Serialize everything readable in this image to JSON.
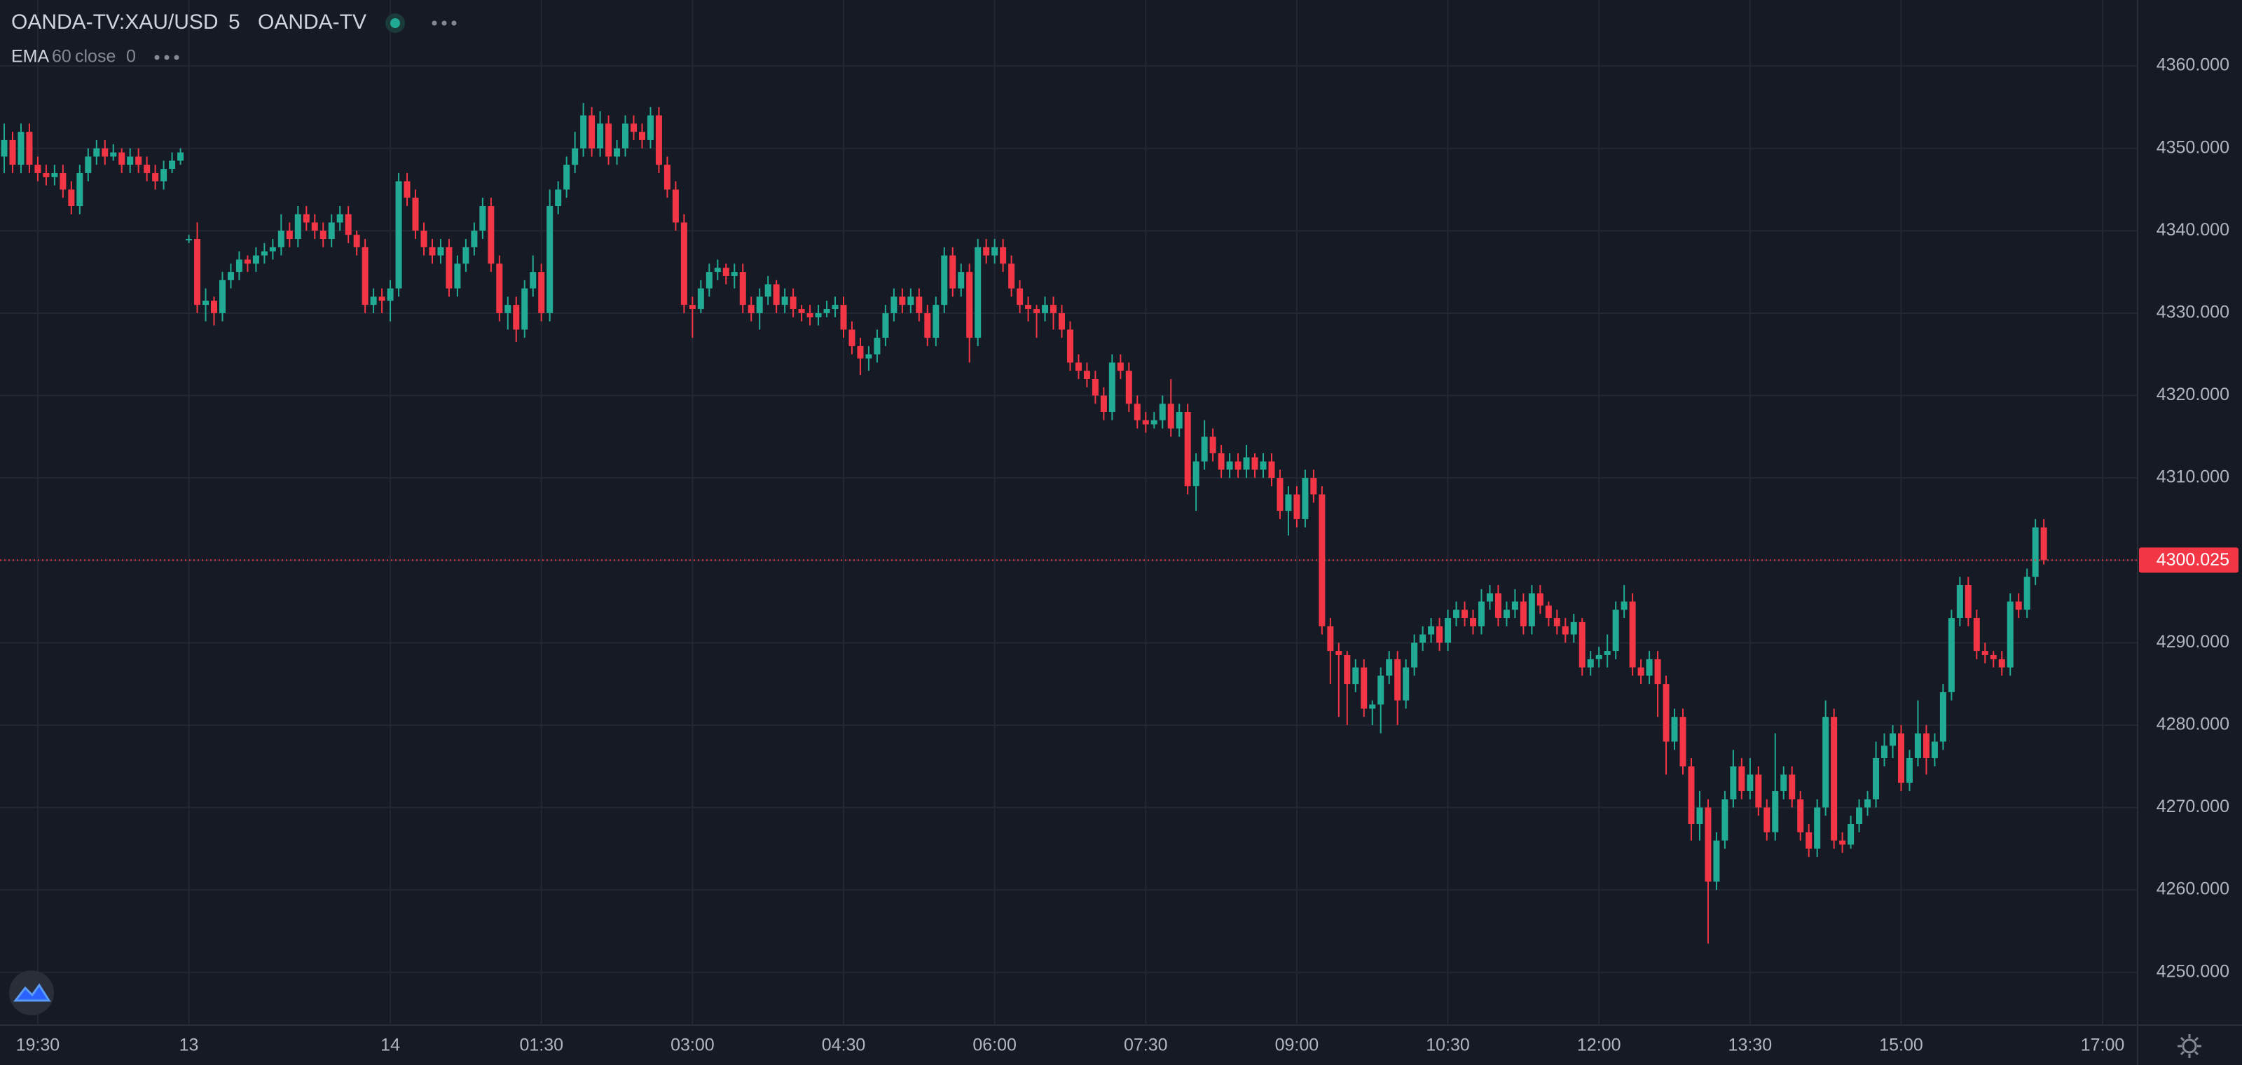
{
  "header": {
    "symbol": "OANDA-TV:XAU/USD",
    "interval": "5",
    "source": "OANDA-TV"
  },
  "indicator": {
    "name": "EMA",
    "length": "60",
    "field": "close",
    "offset": "0"
  },
  "chart_data": {
    "type": "candlestick",
    "up_color": "#22ab94",
    "down_color": "#f23645",
    "grid": true,
    "ylim": [
      4243.6,
      4368.0
    ],
    "yticks": [
      {
        "value": 4250,
        "label": "4250.000"
      },
      {
        "value": 4260,
        "label": "4260.000"
      },
      {
        "value": 4270,
        "label": "4270.000"
      },
      {
        "value": 4280,
        "label": "4280.000"
      },
      {
        "value": 4290,
        "label": "4290.000"
      },
      {
        "value": 4300,
        "label": "4300.000"
      },
      {
        "value": 4310,
        "label": "4310.000"
      },
      {
        "value": 4320,
        "label": "4320.000"
      },
      {
        "value": 4330,
        "label": "4330.000"
      },
      {
        "value": 4340,
        "label": "4340.000"
      },
      {
        "value": 4350,
        "label": "4350.000"
      },
      {
        "value": 4360,
        "label": "4360.000"
      }
    ],
    "categories": [
      null,
      null,
      null,
      null,
      "19:30",
      null,
      null,
      null,
      null,
      null,
      null,
      null,
      null,
      null,
      null,
      null,
      null,
      null,
      null,
      null,
      null,
      null,
      "13",
      null,
      null,
      null,
      null,
      null,
      null,
      null,
      null,
      null,
      null,
      null,
      null,
      null,
      null,
      null,
      null,
      null,
      null,
      null,
      null,
      null,
      null,
      null,
      "14",
      null,
      null,
      null,
      null,
      null,
      null,
      null,
      null,
      null,
      null,
      null,
      null,
      null,
      null,
      null,
      null,
      null,
      "01:30",
      null,
      null,
      null,
      null,
      null,
      null,
      null,
      null,
      null,
      null,
      null,
      null,
      null,
      null,
      null,
      null,
      null,
      "03:00",
      null,
      null,
      null,
      null,
      null,
      null,
      null,
      null,
      null,
      null,
      null,
      null,
      null,
      null,
      null,
      null,
      null,
      "04:30",
      null,
      null,
      null,
      null,
      null,
      null,
      null,
      null,
      null,
      null,
      null,
      null,
      null,
      null,
      null,
      null,
      null,
      "06:00",
      null,
      null,
      null,
      null,
      null,
      null,
      null,
      null,
      null,
      null,
      null,
      null,
      null,
      null,
      null,
      null,
      null,
      "07:30",
      null,
      null,
      null,
      null,
      null,
      null,
      null,
      null,
      null,
      null,
      null,
      null,
      null,
      null,
      null,
      null,
      null,
      "09:00",
      null,
      null,
      null,
      null,
      null,
      null,
      null,
      null,
      null,
      null,
      null,
      null,
      null,
      null,
      null,
      null,
      null,
      "10:30",
      null,
      null,
      null,
      null,
      null,
      null,
      null,
      null,
      null,
      null,
      null,
      null,
      null,
      null,
      null,
      null,
      null,
      "12:00",
      null,
      null,
      null,
      null,
      null,
      null,
      null,
      null,
      null,
      null,
      null,
      null,
      null,
      null,
      null,
      null,
      null,
      "13:30",
      null,
      null,
      null,
      null,
      null,
      null,
      null,
      null,
      null,
      null,
      null,
      null,
      null,
      null,
      null,
      null,
      null,
      "15:00",
      null,
      null,
      null,
      null,
      null,
      null,
      null,
      null,
      null,
      null,
      null,
      null,
      null,
      null,
      null,
      null,
      null,
      null,
      null,
      null,
      null,
      null,
      null,
      "17:00",
      null,
      null,
      null,
      null
    ],
    "open": [
      4349,
      4351,
      4348,
      4352,
      4348,
      4347,
      4346.5,
      4347,
      4345,
      4343,
      4347,
      4349,
      4350,
      4349,
      4349.5,
      4348,
      4349,
      4348,
      4347,
      4346,
      4347.5,
      4348.5,
      4339,
      4339,
      4331,
      4331.5,
      4330,
      4334,
      4335,
      4336.5,
      4336,
      4337,
      4337.5,
      4338,
      4340,
      4339,
      4342,
      4341,
      4340,
      4339,
      4341,
      4342,
      4339.5,
      4338,
      4331,
      4332,
      4331.5,
      4333,
      4346,
      4344,
      4340,
      4338,
      4337,
      4338,
      4333,
      4336,
      4338,
      4340,
      4343,
      4336,
      4330,
      4331,
      4328,
      4333,
      4335,
      4330,
      4343,
      4345,
      4348,
      4350,
      4354,
      4350,
      4353,
      4349,
      4350,
      4353,
      4352,
      4351,
      4354,
      4348,
      4345,
      4341,
      4331,
      4330.5,
      4333,
      4335,
      4335.5,
      4334.5,
      4335,
      4331,
      4330,
      4332,
      4333.5,
      4331,
      4332,
      4330.5,
      4330,
      4329.5,
      4330,
      4330.5,
      4331,
      4328,
      4326,
      4324.5,
      4325,
      4327,
      4330,
      4332,
      4331,
      4332,
      4330,
      4327,
      4331,
      4337,
      4333,
      4335,
      4327,
      4338,
      4337,
      4338,
      4336,
      4333,
      4331,
      4330.5,
      4330,
      4331,
      4330,
      4328,
      4324,
      4323,
      4322,
      4320,
      4318,
      4324,
      4323,
      4319,
      4317,
      4316.5,
      4317,
      4319,
      4316,
      4318,
      4309,
      4312,
      4315,
      4313,
      4311,
      4312,
      4311,
      4312.5,
      4311,
      4312,
      4310,
      4306,
      4308,
      4305,
      4310,
      4308,
      4292,
      4289,
      4288.5,
      4285,
      4287,
      4282,
      4282.5,
      4286,
      4288,
      4283,
      4287,
      4290,
      4291,
      4292,
      4290,
      4293,
      4294,
      4293,
      4292,
      4295,
      4296,
      4293,
      4294,
      4295,
      4292,
      4296,
      4294.5,
      4293,
      4292,
      4291,
      4292.5,
      4287,
      4288,
      4288.5,
      4289,
      4294,
      4295,
      4287,
      4286,
      4288,
      4285,
      4278,
      4281,
      4275,
      4268,
      4270,
      4261,
      4266,
      4271,
      4275,
      4272,
      4274,
      4270,
      4267,
      4272,
      4274,
      4271,
      4267,
      4265,
      4270,
      4281,
      4266,
      4265.5,
      4268,
      4270,
      4271,
      4276,
      4277.5,
      4279,
      4273,
      4276,
      4279,
      4276,
      4278,
      4284,
      4293,
      4297,
      4293,
      4289,
      4288.5,
      4288,
      4287,
      4295,
      4294,
      4298,
      4304,
      null,
      null,
      null,
      null,
      null,
      null,
      null,
      null,
      null,
      null,
      null
    ],
    "high": [
      4353,
      4352,
      4353,
      4353,
      4349,
      4348,
      4348,
      4348,
      4346,
      4348,
      4350,
      4351,
      4351,
      4350.5,
      4350,
      4350,
      4350,
      4349,
      4348,
      4348.5,
      4349.5,
      4350,
      4339.5,
      4341,
      4333,
      4332,
      4335,
      4336,
      4337.5,
      4337,
      4338,
      4338.5,
      4339,
      4342,
      4341,
      4343,
      4343,
      4342,
      4341,
      4342,
      4343,
      4343,
      4340,
      4339,
      4333,
      4333,
      4334,
      4347,
      4347,
      4345,
      4341,
      4339,
      4339,
      4339,
      4337,
      4339,
      4341,
      4344,
      4344,
      4337,
      4332,
      4332,
      4334,
      4337,
      4336,
      4345,
      4346,
      4349,
      4352,
      4355.5,
      4355,
      4354.5,
      4354,
      4351,
      4354,
      4354,
      4353,
      4355,
      4355,
      4349,
      4346,
      4342,
      4332,
      4334,
      4336,
      4336.5,
      4336,
      4336,
      4336,
      4332,
      4333,
      4334.5,
      4334,
      4333,
      4333,
      4331,
      4331,
      4331,
      4331.5,
      4332,
      4332,
      4329,
      4327,
      4326,
      4328,
      4331,
      4333,
      4333,
      4333,
      4333,
      4331,
      4332,
      4338,
      4338,
      4336,
      4336,
      4339,
      4339,
      4339,
      4339,
      4337,
      4334,
      4332,
      4331,
      4332,
      4332,
      4331,
      4329,
      4325,
      4324,
      4323,
      4321,
      4325,
      4325,
      4324,
      4320,
      4318,
      4318,
      4320,
      4322,
      4319,
      4319,
      4313,
      4317,
      4316,
      4314,
      4313,
      4313,
      4314,
      4313,
      4313,
      4313,
      4311,
      4309,
      4309,
      4311,
      4311,
      4309,
      4293,
      4290,
      4289,
      4288,
      4288,
      4283,
      4287,
      4289,
      4289,
      4288,
      4291,
      4292,
      4293,
      4293,
      4294,
      4295,
      4295,
      4294,
      4296.5,
      4297,
      4297,
      4295,
      4296.5,
      4296,
      4297,
      4297,
      4295,
      4294,
      4293,
      4293.5,
      4293,
      4289,
      4289.5,
      4291,
      4295,
      4297,
      4296,
      4288,
      4289,
      4289,
      4286,
      4282,
      4282,
      4276,
      4272,
      4271,
      4267,
      4272,
      4277,
      4276,
      4276,
      4275,
      4271,
      4279,
      4275,
      4275,
      4272,
      4268,
      4271,
      4283,
      4282,
      4267,
      4269,
      4271,
      4272,
      4278,
      4279,
      4280,
      4280,
      4277,
      4283,
      4280,
      4279,
      4285,
      4294,
      4298,
      4298,
      4294,
      4290,
      4289,
      4289,
      4296,
      4296,
      4299,
      4305,
      4305,
      null,
      null,
      null,
      null,
      null,
      null,
      null,
      null,
      null,
      null,
      null
    ],
    "low": [
      4347,
      4347,
      4347,
      4347,
      4346,
      4345.5,
      4345.5,
      4344,
      4342,
      4342,
      4346,
      4348,
      4348,
      4348.5,
      4347,
      4347,
      4347,
      4346,
      4345,
      4345,
      4347,
      4348,
      4338.5,
      4330,
      4329,
      4328.5,
      4329,
      4333,
      4334,
      4335,
      4335,
      4336,
      4336.5,
      4337,
      4338,
      4338,
      4340,
      4339,
      4338,
      4338,
      4340,
      4338.5,
      4337,
      4330,
      4330,
      4330,
      4329,
      4332,
      4343,
      4339,
      4337,
      4336,
      4336,
      4332,
      4332,
      4335,
      4337,
      4339,
      4335,
      4329,
      4328,
      4326.5,
      4327,
      4332,
      4329,
      4329,
      4342,
      4344,
      4347,
      4349,
      4349,
      4349,
      4348,
      4348,
      4349,
      4351,
      4350,
      4350,
      4347,
      4344,
      4340,
      4330,
      4327,
      4330,
      4332,
      4334,
      4333.5,
      4333,
      4330,
      4329,
      4328,
      4331,
      4330,
      4330,
      4329.5,
      4329,
      4328.5,
      4328.5,
      4329.5,
      4329.5,
      4327,
      4325,
      4322.5,
      4323,
      4324,
      4326,
      4329,
      4330,
      4330,
      4329,
      4326,
      4326,
      4330,
      4332,
      4332,
      4324,
      4326,
      4336,
      4336,
      4335,
      4332,
      4330,
      4329,
      4327,
      4329,
      4328,
      4327,
      4323,
      4322,
      4321,
      4319,
      4317,
      4317,
      4322,
      4318,
      4316,
      4315.5,
      4316,
      4316,
      4315,
      4315,
      4308,
      4306,
      4311,
      4312,
      4310,
      4310,
      4310,
      4310,
      4310,
      4310,
      4309,
      4305,
      4303,
      4304,
      4304,
      4307,
      4291,
      4285,
      4281,
      4280,
      4284,
      4281,
      4280,
      4279,
      4285,
      4280,
      4282,
      4286,
      4289,
      4290,
      4289,
      4289,
      4292,
      4292,
      4291,
      4291,
      4294,
      4292,
      4292,
      4293,
      4291,
      4291,
      4293.5,
      4292,
      4291,
      4290,
      4290,
      4286,
      4286,
      4287,
      4287,
      4288,
      4293,
      4286,
      4285,
      4285,
      4281,
      4274,
      4277,
      4274,
      4266,
      4266,
      4253.5,
      4260,
      4265,
      4270,
      4271,
      4271,
      4269,
      4266,
      4266,
      4271,
      4270,
      4266,
      4264,
      4264,
      4269,
      4265,
      4264.5,
      4265,
      4267,
      4269,
      4270,
      4275,
      4276,
      4272,
      4272,
      4275,
      4274,
      4275,
      4277,
      4283,
      4292,
      4292,
      4288,
      4287.5,
      4287,
      4286,
      4286,
      4293,
      4293,
      4297,
      4299.5,
      null,
      null,
      null,
      null,
      null,
      null,
      null,
      null,
      null,
      null,
      null
    ],
    "close": [
      4351,
      4348,
      4352,
      4348,
      4347,
      4346.5,
      4347,
      4345,
      4343,
      4347,
      4349,
      4350,
      4349,
      4349.5,
      4348,
      4349,
      4348,
      4347,
      4346,
      4347.5,
      4348.5,
      4349.5,
      4339,
      4331,
      4331.5,
      4330,
      4334,
      4335,
      4336.5,
      4336,
      4337,
      4337.5,
      4338,
      4340,
      4339,
      4342,
      4341,
      4340,
      4339,
      4341,
      4342,
      4339.5,
      4338,
      4331,
      4332,
      4331.5,
      4333,
      4346,
      4344,
      4340,
      4338,
      4337,
      4338,
      4333,
      4336,
      4338,
      4340,
      4343,
      4336,
      4330,
      4331,
      4328,
      4333,
      4335,
      4330,
      4343,
      4345,
      4348,
      4350,
      4354,
      4350,
      4353,
      4349,
      4350,
      4353,
      4352,
      4351,
      4354,
      4348,
      4345,
      4341,
      4331,
      4330.5,
      4333,
      4335,
      4335.5,
      4334.5,
      4335,
      4331,
      4330,
      4332,
      4333.5,
      4331,
      4332,
      4330.5,
      4330,
      4329.5,
      4330,
      4330.5,
      4331,
      4328,
      4326,
      4324.5,
      4325,
      4327,
      4330,
      4332,
      4331,
      4332,
      4330,
      4327,
      4331,
      4337,
      4333,
      4335,
      4327,
      4338,
      4337,
      4338,
      4336,
      4333,
      4331,
      4330.5,
      4330,
      4331,
      4330,
      4328,
      4324,
      4323,
      4322,
      4320,
      4318,
      4324,
      4323,
      4319,
      4317,
      4316.5,
      4317,
      4319,
      4316,
      4318,
      4309,
      4312,
      4315,
      4313,
      4311,
      4312,
      4311,
      4312.5,
      4311,
      4312,
      4310,
      4306,
      4308,
      4305,
      4310,
      4308,
      4292,
      4289,
      4288.5,
      4285,
      4287,
      4282,
      4282.5,
      4286,
      4288,
      4283,
      4287,
      4290,
      4291,
      4292,
      4290,
      4293,
      4294,
      4293,
      4292,
      4295,
      4296,
      4293,
      4294,
      4295,
      4292,
      4296,
      4294.5,
      4293,
      4292,
      4291,
      4292.5,
      4287,
      4288,
      4288.5,
      4289,
      4294,
      4295,
      4287,
      4286,
      4288,
      4285,
      4278,
      4281,
      4275,
      4268,
      4270,
      4261,
      4266,
      4271,
      4275,
      4272,
      4274,
      4270,
      4267,
      4272,
      4274,
      4271,
      4267,
      4265,
      4270,
      4281,
      4266,
      4265.5,
      4268,
      4270,
      4271,
      4276,
      4277.5,
      4279,
      4273,
      4276,
      4279,
      4276,
      4278,
      4284,
      4293,
      4297,
      4293,
      4289,
      4288.5,
      4288,
      4287,
      4295,
      4294,
      4298,
      4304,
      4300.025,
      null,
      null,
      null,
      null,
      null,
      null,
      null,
      null,
      null,
      null,
      null
    ]
  }
}
